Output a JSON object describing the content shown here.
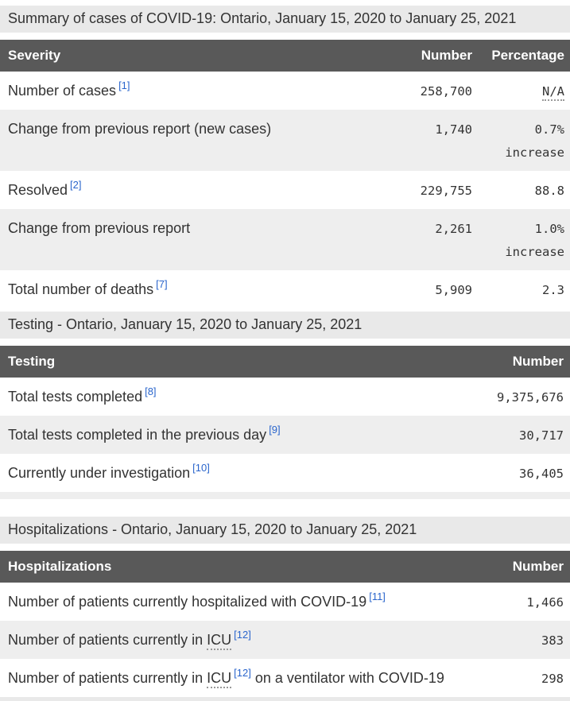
{
  "colors": {
    "header_bg": "#595959",
    "header_text": "#ffffff",
    "stripe_bg": "#eeeeee",
    "section_title_bg": "#e9e9e9",
    "link_blue": "#2a65cc",
    "body_text": "#333333"
  },
  "sections": [
    {
      "title": "Summary of cases of COVID-19: Ontario, January 15, 2020 to January 25, 2021",
      "columns": [
        "Severity",
        "Number",
        "Percentage"
      ],
      "rows": [
        {
          "label": "Number of cases",
          "footnote": "[1]",
          "number": "258,700",
          "percentage": "N/A"
        },
        {
          "label": "Change from previous report (new cases)",
          "number": "1,740",
          "percentage": "0.7%",
          "percentage_note": "increase"
        },
        {
          "label": "Resolved",
          "footnote": "[2]",
          "number": "229,755",
          "percentage": "88.8"
        },
        {
          "label": "Change from previous report",
          "number": "2,261",
          "percentage": "1.0%",
          "percentage_note": "increase"
        },
        {
          "label": "Total number of deaths",
          "footnote": "[7]",
          "number": "5,909",
          "percentage": "2.3"
        }
      ]
    },
    {
      "title": "Testing - Ontario, January 15, 2020 to January 25, 2021",
      "columns": [
        "Testing",
        "Number"
      ],
      "rows": [
        {
          "label": "Total tests completed",
          "footnote": "[8]",
          "number": "9,375,676"
        },
        {
          "label": "Total tests completed in the previous day",
          "footnote": "[9]",
          "number": "30,717"
        },
        {
          "label": "Currently under investigation",
          "footnote": "[10]",
          "number": "36,405"
        }
      ]
    },
    {
      "title": "Hospitalizations - Ontario, January 15, 2020 to January 25, 2021",
      "columns": [
        "Hospitalizations",
        "Number"
      ],
      "rows": [
        {
          "label": "Number of patients currently hospitalized with COVID-19",
          "footnote": "[11]",
          "number": "1,466"
        },
        {
          "prefix": "Number of patients currently in ",
          "abbr": "ICU",
          "footnote": "[12]",
          "number": "383"
        },
        {
          "prefix": "Number of patients currently in ",
          "abbr": "ICU",
          "footnote": "[12]",
          "suffix": " on a ventilator with COVID-19",
          "number": "298"
        }
      ]
    }
  ]
}
